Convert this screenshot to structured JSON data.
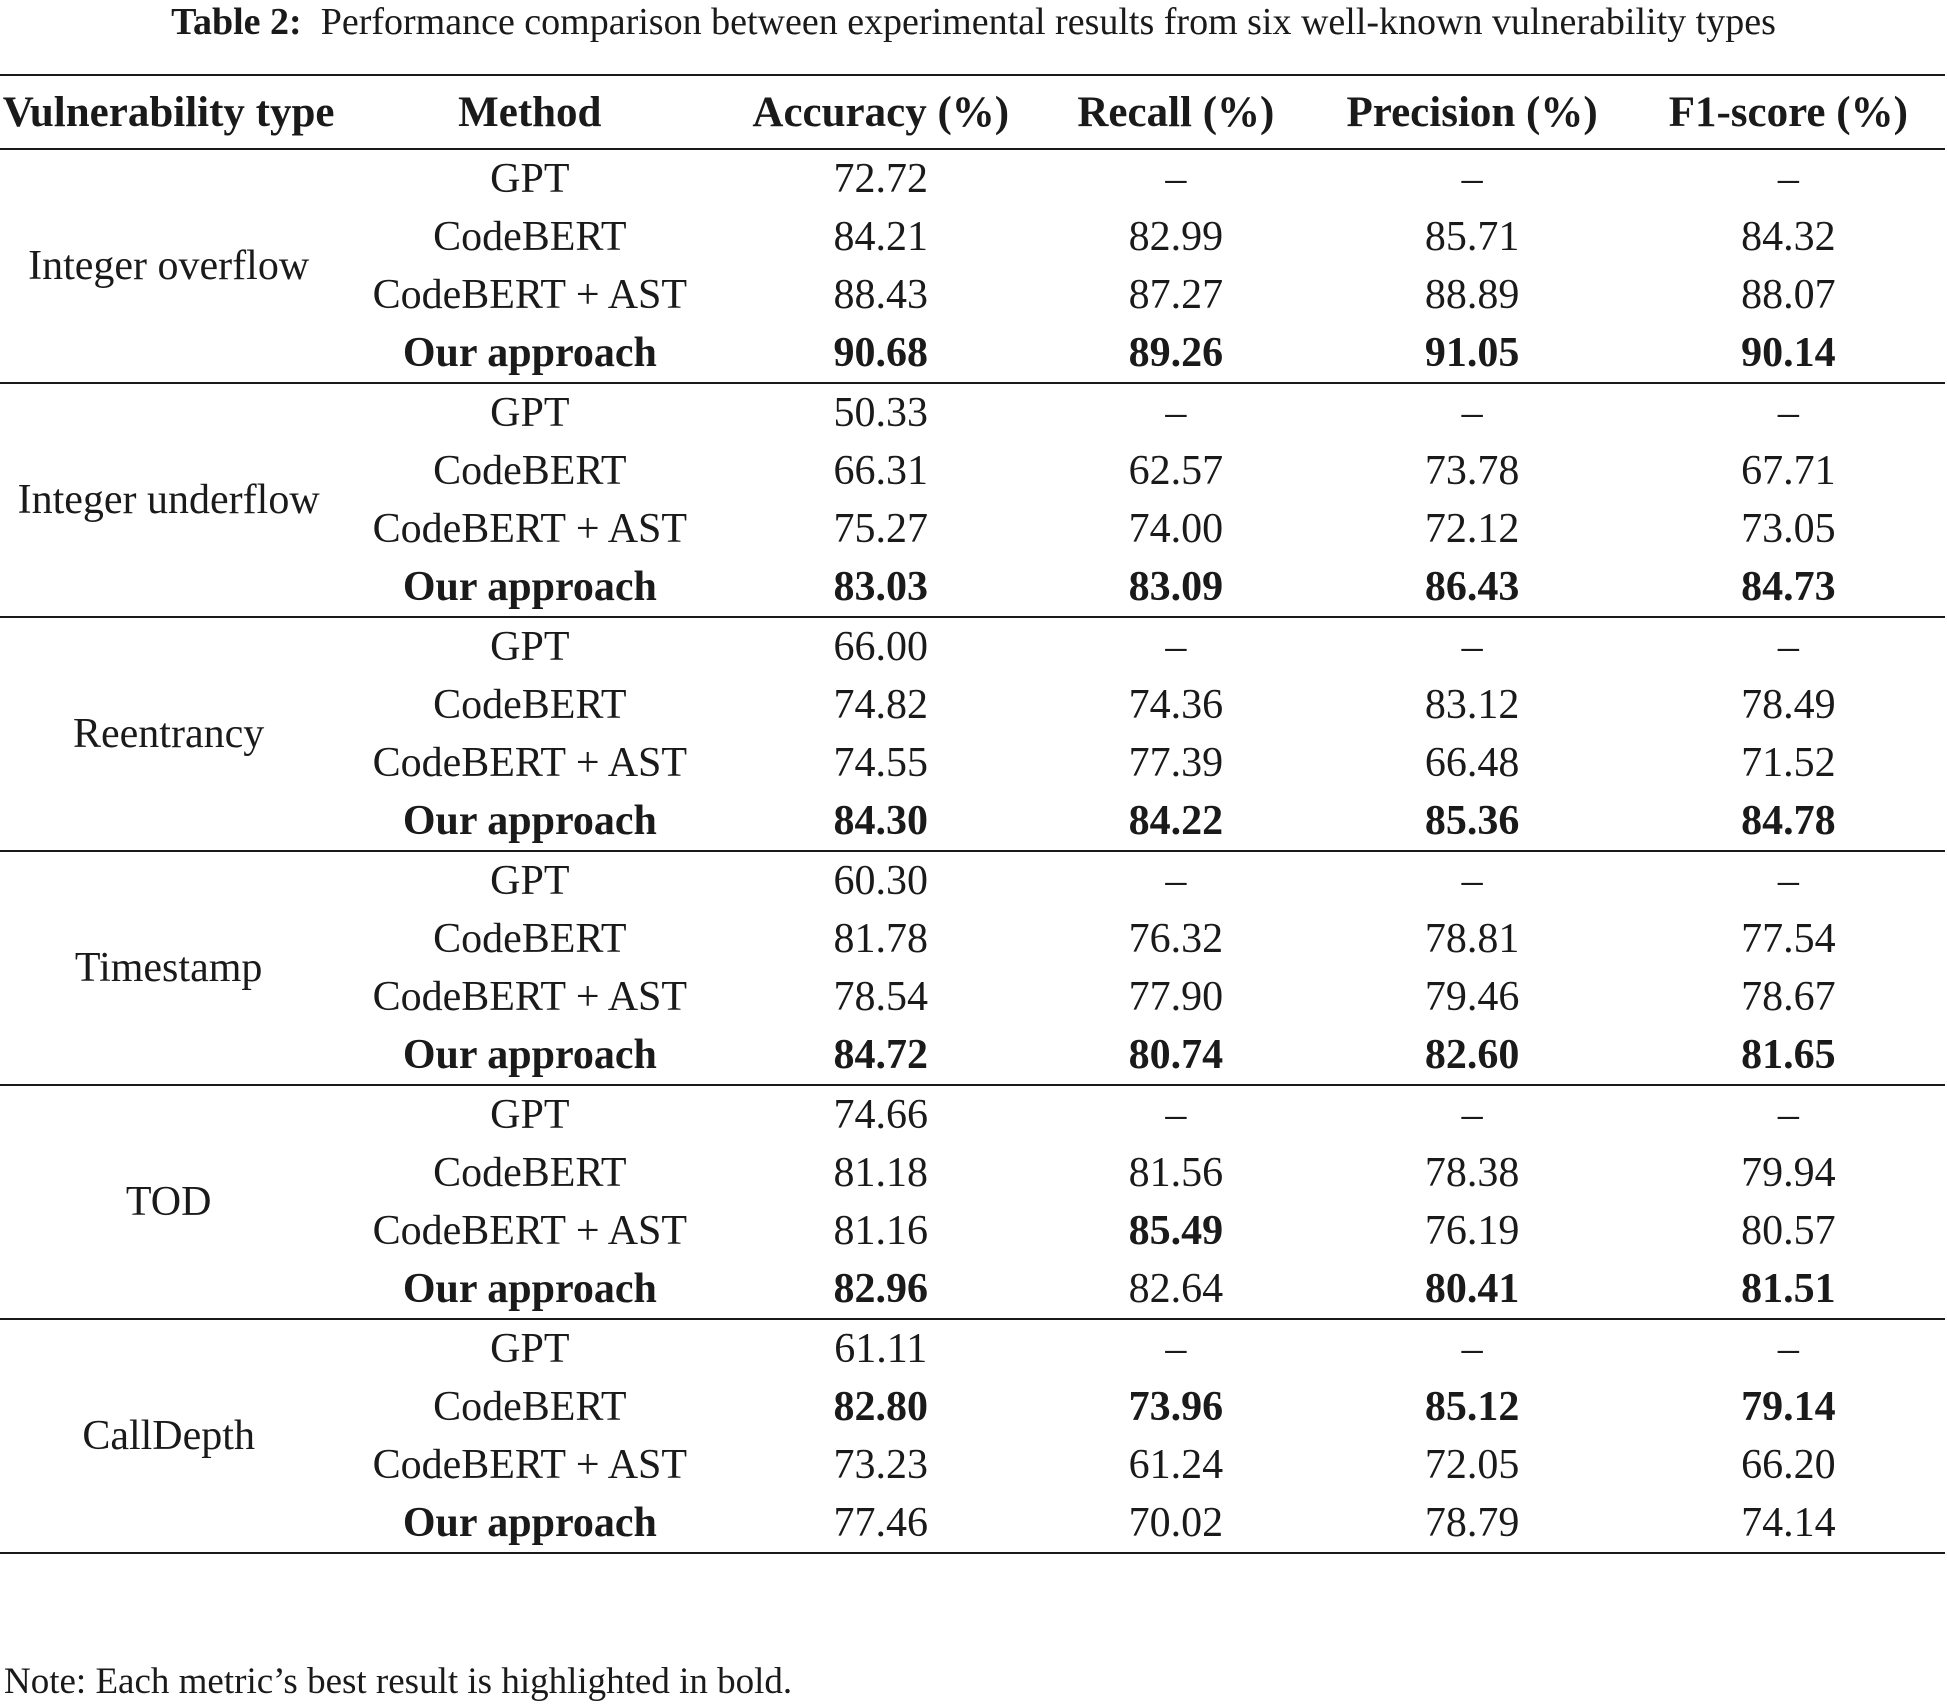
{
  "caption": {
    "label": "Table 2:",
    "text": "Performance comparison between experimental results from six well-known vulnerability types"
  },
  "columns": [
    "Vulnerability type",
    "Method",
    "Accuracy (%)",
    "Recall (%)",
    "Precision (%)",
    "F1-score (%)"
  ],
  "groups": [
    {
      "type": "Integer overflow",
      "rows": [
        {
          "method": "GPT",
          "values": [
            "72.72",
            "–",
            "–",
            "–"
          ],
          "bold": [
            false,
            false,
            false,
            false
          ],
          "method_bold": false
        },
        {
          "method": "CodeBERT",
          "values": [
            "84.21",
            "82.99",
            "85.71",
            "84.32"
          ],
          "bold": [
            false,
            false,
            false,
            false
          ],
          "method_bold": false
        },
        {
          "method": "CodeBERT + AST",
          "values": [
            "88.43",
            "87.27",
            "88.89",
            "88.07"
          ],
          "bold": [
            false,
            false,
            false,
            false
          ],
          "method_bold": false
        },
        {
          "method": "Our approach",
          "values": [
            "90.68",
            "89.26",
            "91.05",
            "90.14"
          ],
          "bold": [
            true,
            true,
            true,
            true
          ],
          "method_bold": true
        }
      ]
    },
    {
      "type": "Integer underflow",
      "rows": [
        {
          "method": "GPT",
          "values": [
            "50.33",
            "–",
            "–",
            "–"
          ],
          "bold": [
            false,
            false,
            false,
            false
          ],
          "method_bold": false
        },
        {
          "method": "CodeBERT",
          "values": [
            "66.31",
            "62.57",
            "73.78",
            "67.71"
          ],
          "bold": [
            false,
            false,
            false,
            false
          ],
          "method_bold": false
        },
        {
          "method": "CodeBERT + AST",
          "values": [
            "75.27",
            "74.00",
            "72.12",
            "73.05"
          ],
          "bold": [
            false,
            false,
            false,
            false
          ],
          "method_bold": false
        },
        {
          "method": "Our approach",
          "values": [
            "83.03",
            "83.09",
            "86.43",
            "84.73"
          ],
          "bold": [
            true,
            true,
            true,
            true
          ],
          "method_bold": true
        }
      ]
    },
    {
      "type": "Reentrancy",
      "rows": [
        {
          "method": "GPT",
          "values": [
            "66.00",
            "–",
            "–",
            "–"
          ],
          "bold": [
            false,
            false,
            false,
            false
          ],
          "method_bold": false
        },
        {
          "method": "CodeBERT",
          "values": [
            "74.82",
            "74.36",
            "83.12",
            "78.49"
          ],
          "bold": [
            false,
            false,
            false,
            false
          ],
          "method_bold": false
        },
        {
          "method": "CodeBERT + AST",
          "values": [
            "74.55",
            "77.39",
            "66.48",
            "71.52"
          ],
          "bold": [
            false,
            false,
            false,
            false
          ],
          "method_bold": false
        },
        {
          "method": "Our approach",
          "values": [
            "84.30",
            "84.22",
            "85.36",
            "84.78"
          ],
          "bold": [
            true,
            true,
            true,
            true
          ],
          "method_bold": true
        }
      ]
    },
    {
      "type": "Timestamp",
      "rows": [
        {
          "method": "GPT",
          "values": [
            "60.30",
            "–",
            "–",
            "–"
          ],
          "bold": [
            false,
            false,
            false,
            false
          ],
          "method_bold": false
        },
        {
          "method": "CodeBERT",
          "values": [
            "81.78",
            "76.32",
            "78.81",
            "77.54"
          ],
          "bold": [
            false,
            false,
            false,
            false
          ],
          "method_bold": false
        },
        {
          "method": "CodeBERT + AST",
          "values": [
            "78.54",
            "77.90",
            "79.46",
            "78.67"
          ],
          "bold": [
            false,
            false,
            false,
            false
          ],
          "method_bold": false
        },
        {
          "method": "Our approach",
          "values": [
            "84.72",
            "80.74",
            "82.60",
            "81.65"
          ],
          "bold": [
            true,
            true,
            true,
            true
          ],
          "method_bold": true
        }
      ]
    },
    {
      "type": "TOD",
      "rows": [
        {
          "method": "GPT",
          "values": [
            "74.66",
            "–",
            "–",
            "–"
          ],
          "bold": [
            false,
            false,
            false,
            false
          ],
          "method_bold": false
        },
        {
          "method": "CodeBERT",
          "values": [
            "81.18",
            "81.56",
            "78.38",
            "79.94"
          ],
          "bold": [
            false,
            false,
            false,
            false
          ],
          "method_bold": false
        },
        {
          "method": "CodeBERT + AST",
          "values": [
            "81.16",
            "85.49",
            "76.19",
            "80.57"
          ],
          "bold": [
            false,
            true,
            false,
            false
          ],
          "method_bold": false
        },
        {
          "method": "Our approach",
          "values": [
            "82.96",
            "82.64",
            "80.41",
            "81.51"
          ],
          "bold": [
            true,
            false,
            true,
            true
          ],
          "method_bold": true
        }
      ]
    },
    {
      "type": "CallDepth",
      "rows": [
        {
          "method": "GPT",
          "values": [
            "61.11",
            "–",
            "–",
            "–"
          ],
          "bold": [
            false,
            false,
            false,
            false
          ],
          "method_bold": false
        },
        {
          "method": "CodeBERT",
          "values": [
            "82.80",
            "73.96",
            "85.12",
            "79.14"
          ],
          "bold": [
            true,
            true,
            true,
            true
          ],
          "method_bold": false
        },
        {
          "method": "CodeBERT + AST",
          "values": [
            "73.23",
            "61.24",
            "72.05",
            "66.20"
          ],
          "bold": [
            false,
            false,
            false,
            false
          ],
          "method_bold": false
        },
        {
          "method": "Our approach",
          "values": [
            "77.46",
            "70.02",
            "78.79",
            "74.14"
          ],
          "bold": [
            false,
            false,
            false,
            false
          ],
          "method_bold": true
        }
      ]
    }
  ],
  "note": "Note: Each metric’s best result is highlighted in bold."
}
